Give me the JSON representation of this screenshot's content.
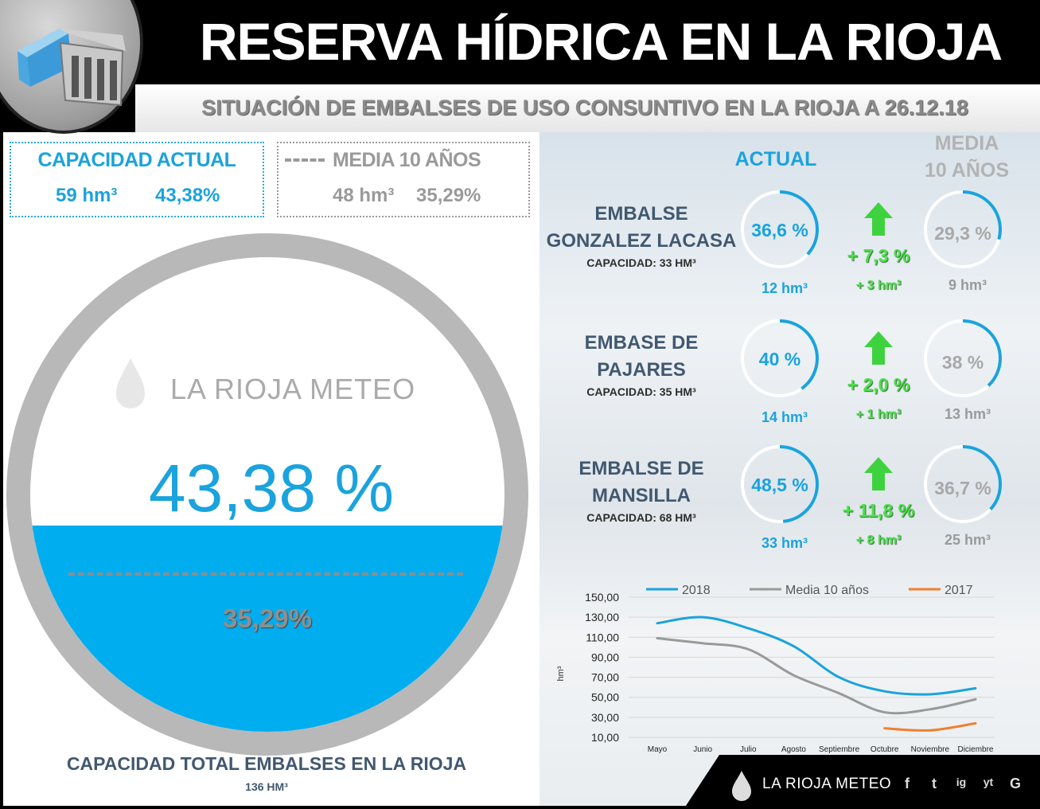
{
  "header": {
    "title": "RESERVA HÍDRICA EN LA RIOJA",
    "subtitle": "SITUACIÓN DE EMBALSES DE USO CONSUNTIVO EN LA RIOJA A 26.12.18"
  },
  "summary": {
    "actual_label": "CAPACIDAD ACTUAL",
    "actual_hm": "59 hm³",
    "actual_pct": "43,38%",
    "media_label": "MEDIA 10 AÑOS",
    "media_hm": "48 hm³",
    "media_pct": "35,29%"
  },
  "gauge": {
    "value_label": "43,38 %",
    "avg_label": "35,29%",
    "value": 43.38,
    "avg": 35.29,
    "watermark": "LA RIOJA METEO",
    "water_color": "#00adee",
    "ring_color": "#b8b8b8"
  },
  "total": {
    "label": "CAPACIDAD TOTAL EMBALSES EN LA RIOJA",
    "value": "136 HM³"
  },
  "columns": {
    "actual": "ACTUAL",
    "media_line1": "MEDIA",
    "media_line2": "10 AÑOS"
  },
  "reservoirs": [
    {
      "name_line1": "EMBALSE",
      "name_line2": "GONZALEZ LACASA",
      "capacity": "CAPACIDAD: 33 HM³",
      "actual_label": "36,6 %",
      "actual_value": 36.6,
      "actual_hm": "12 hm³",
      "delta_pct": "+ 7,3 %",
      "delta_hm": "+ 3 hm³",
      "media_label": "29,3 %",
      "media_value": 29.3,
      "media_hm": "9 hm³"
    },
    {
      "name_line1": "EMBASE DE",
      "name_line2": "PAJARES",
      "capacity": "CAPACIDAD: 35 HM³",
      "actual_label": "40 %",
      "actual_value": 40,
      "actual_hm": "14 hm³",
      "delta_pct": "+ 2,0 %",
      "delta_hm": "+ 1 hm³",
      "media_label": "38 %",
      "media_value": 38,
      "media_hm": "13 hm³"
    },
    {
      "name_line1": "EMBALSE DE",
      "name_line2": "MANSILLA",
      "capacity": "CAPACIDAD: 68 HM³",
      "actual_label": "48,5 %",
      "actual_value": 48.5,
      "actual_hm": "33 hm³",
      "delta_pct": "+ 11,8 %",
      "delta_hm": "+ 8 hm³",
      "media_label": "36,7 %",
      "media_value": 36.7,
      "media_hm": "25 hm³"
    }
  ],
  "colors": {
    "blue": "#1aa3dd",
    "grey": "#9a9a9a",
    "green": "#4fe04f",
    "orange": "#ef7f2f"
  },
  "chart_data": {
    "type": "line",
    "categories": [
      "Mayo",
      "Junio",
      "Julio",
      "Agosto",
      "Septiembre",
      "Octubre",
      "Noviembre",
      "Diciembre"
    ],
    "series": [
      {
        "name": "2018",
        "color": "#1aa3dd",
        "values": [
          124,
          130,
          119,
          101,
          70,
          56,
          53,
          59
        ]
      },
      {
        "name": "Media 10 años",
        "color": "#9a9a9a",
        "values": [
          109,
          104,
          98,
          72,
          54,
          35,
          38,
          48
        ]
      },
      {
        "name": "2017",
        "color": "#ef7f2f",
        "values": [
          null,
          null,
          null,
          null,
          null,
          19,
          17,
          24
        ]
      }
    ],
    "ylabel": "hm³",
    "yticks": [
      "150,00",
      "130,00",
      "110,00",
      "90,00",
      "70,00",
      "50,00",
      "30,00",
      "10,00"
    ],
    "ylim": [
      10,
      150
    ],
    "legend": "top",
    "grid": true
  },
  "footer": {
    "brand": "LA RIOJA METEO",
    "social": [
      "f",
      "t",
      "ig",
      "yt",
      "G"
    ]
  }
}
